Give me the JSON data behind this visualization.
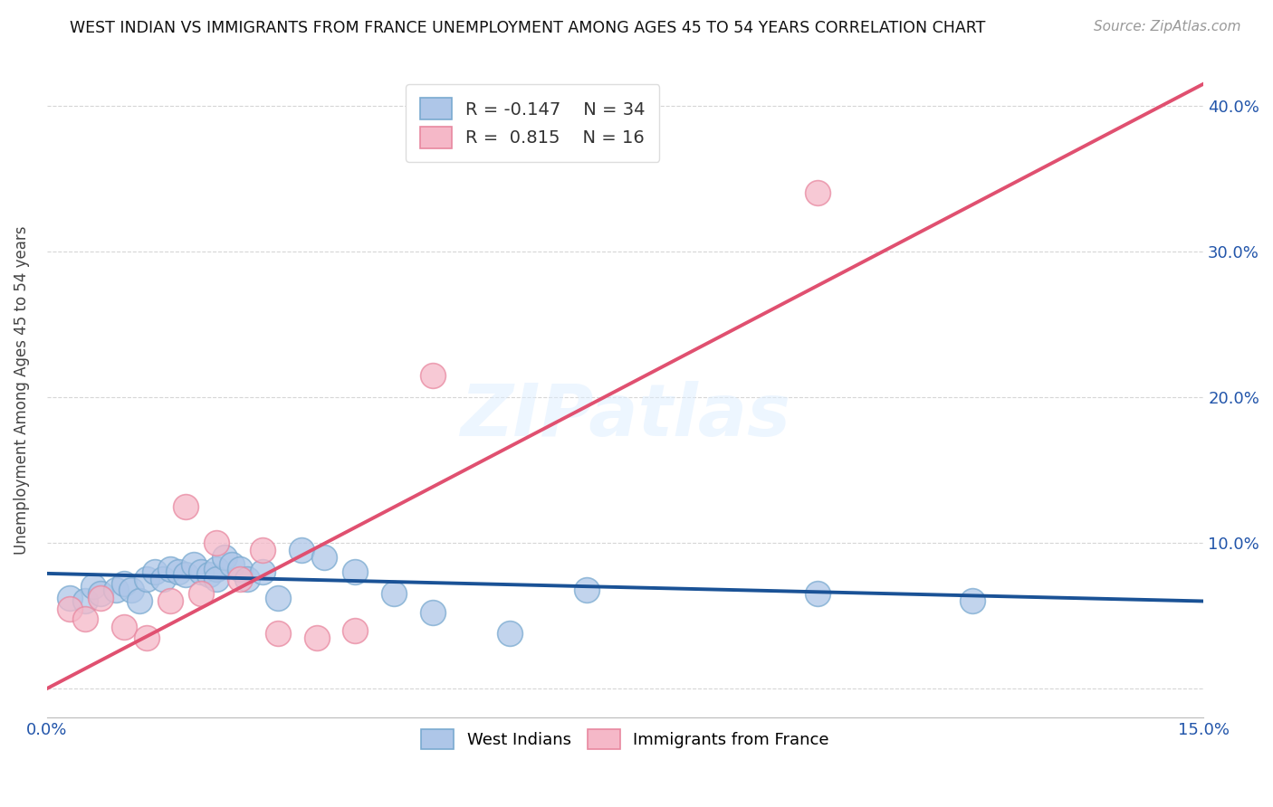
{
  "title": "WEST INDIAN VS IMMIGRANTS FROM FRANCE UNEMPLOYMENT AMONG AGES 45 TO 54 YEARS CORRELATION CHART",
  "source": "Source: ZipAtlas.com",
  "ylabel": "Unemployment Among Ages 45 to 54 years",
  "xmin": 0.0,
  "xmax": 0.15,
  "ymin": -0.02,
  "ymax": 0.43,
  "ytick_labels": [
    "",
    "10.0%",
    "20.0%",
    "30.0%",
    "40.0%"
  ],
  "ytick_values": [
    0.0,
    0.1,
    0.2,
    0.3,
    0.4
  ],
  "xtick_labels": [
    "0.0%",
    "",
    "",
    "",
    "",
    "",
    "15.0%"
  ],
  "xtick_values": [
    0.0,
    0.025,
    0.05,
    0.075,
    0.1,
    0.125,
    0.15
  ],
  "legend_r_blue": "-0.147",
  "legend_n_blue": "34",
  "legend_r_pink": "0.815",
  "legend_n_pink": "16",
  "blue_color": "#aec6e8",
  "pink_color": "#f5b8c8",
  "blue_edge_color": "#7aaad0",
  "pink_edge_color": "#e888a0",
  "blue_line_color": "#1a5296",
  "pink_line_color": "#e05070",
  "watermark": "ZIPatlas",
  "blue_scatter_x": [
    0.003,
    0.005,
    0.006,
    0.007,
    0.009,
    0.01,
    0.011,
    0.012,
    0.013,
    0.014,
    0.015,
    0.016,
    0.017,
    0.018,
    0.019,
    0.02,
    0.021,
    0.022,
    0.022,
    0.023,
    0.024,
    0.025,
    0.026,
    0.028,
    0.03,
    0.033,
    0.036,
    0.04,
    0.045,
    0.05,
    0.06,
    0.07,
    0.1,
    0.12
  ],
  "blue_scatter_y": [
    0.062,
    0.06,
    0.07,
    0.065,
    0.068,
    0.072,
    0.068,
    0.06,
    0.075,
    0.08,
    0.075,
    0.082,
    0.08,
    0.078,
    0.085,
    0.08,
    0.078,
    0.082,
    0.075,
    0.09,
    0.085,
    0.082,
    0.075,
    0.08,
    0.062,
    0.095,
    0.09,
    0.08,
    0.065,
    0.052,
    0.038,
    0.068,
    0.065,
    0.06
  ],
  "pink_scatter_x": [
    0.003,
    0.005,
    0.007,
    0.01,
    0.013,
    0.016,
    0.018,
    0.02,
    0.022,
    0.025,
    0.028,
    0.03,
    0.035,
    0.04,
    0.05,
    0.1
  ],
  "pink_scatter_y": [
    0.055,
    0.048,
    0.062,
    0.042,
    0.035,
    0.06,
    0.125,
    0.065,
    0.1,
    0.075,
    0.095,
    0.038,
    0.035,
    0.04,
    0.215,
    0.34
  ],
  "blue_line_x": [
    0.0,
    0.15
  ],
  "blue_line_y": [
    0.079,
    0.06
  ],
  "pink_line_x": [
    0.0,
    0.15
  ],
  "pink_line_y": [
    0.0,
    0.415
  ]
}
